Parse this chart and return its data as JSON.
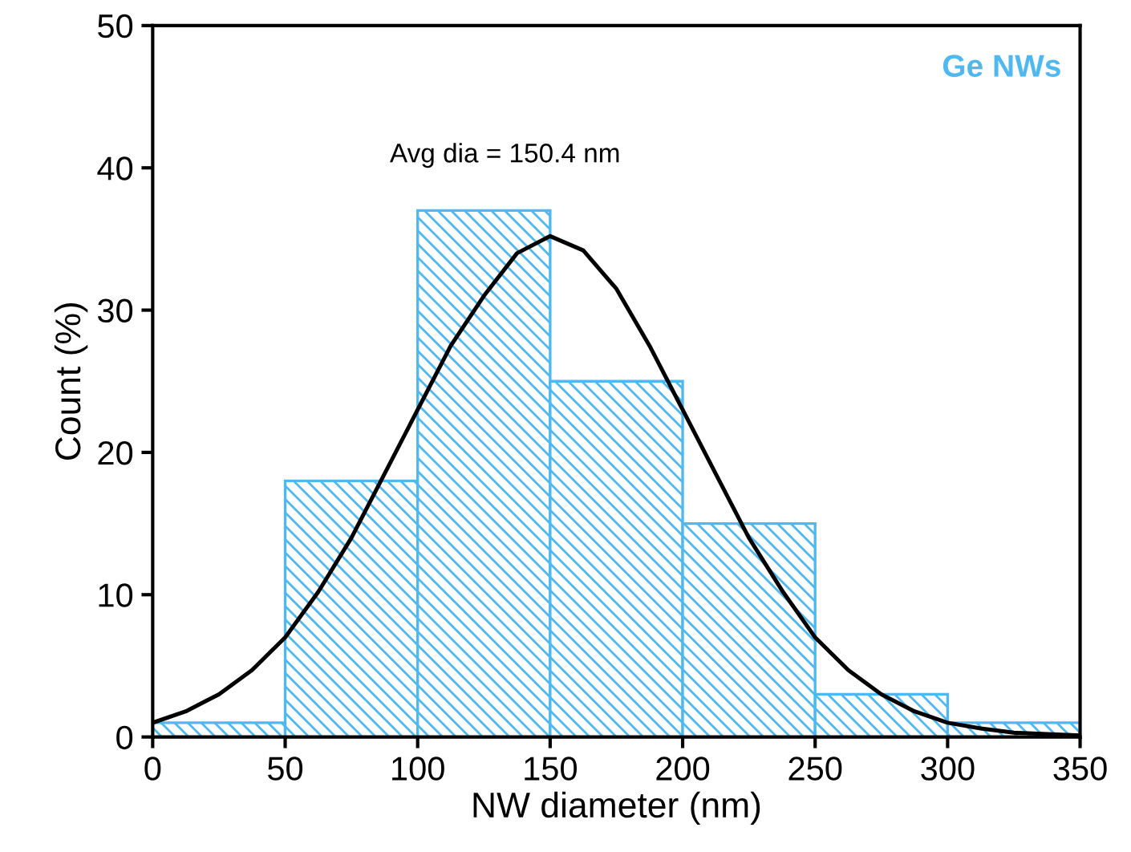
{
  "chart_data": {
    "type": "histogram",
    "xlabel": "NW diameter (nm)",
    "ylabel": "Count (%)",
    "bins": [
      0,
      50,
      100,
      150,
      200,
      250,
      300,
      350
    ],
    "values": [
      1,
      18,
      37,
      25,
      15,
      3,
      1
    ],
    "color": "#4fb8ee",
    "series": [
      {
        "type": "line",
        "color": "#000000",
        "x": [
          0,
          12.5,
          25,
          37.5,
          50,
          62.5,
          75,
          87.5,
          100,
          112.5,
          125,
          137.5,
          150,
          162.5,
          175,
          187.5,
          200,
          212.5,
          225,
          237.5,
          250,
          262.5,
          275,
          287.5,
          300,
          312.5,
          325,
          350
        ],
        "values": [
          1,
          1.8,
          3,
          4.7,
          7,
          10.2,
          14,
          18.5,
          23,
          27.5,
          31,
          34,
          35.2,
          34.2,
          31.5,
          27.5,
          23,
          18.5,
          14,
          10.3,
          7,
          4.7,
          3,
          1.8,
          1,
          0.6,
          0.3,
          0.1
        ]
      }
    ],
    "annotations": [
      "Avg dia = 150.4 nm",
      "Ge NWs"
    ],
    "xlim": [
      0,
      350
    ],
    "ylim": [
      0,
      50
    ],
    "xticks": [
      0,
      50,
      100,
      150,
      200,
      250,
      300,
      350
    ],
    "yticks": [
      0,
      10,
      20,
      30,
      40,
      50
    ],
    "grid": false
  }
}
